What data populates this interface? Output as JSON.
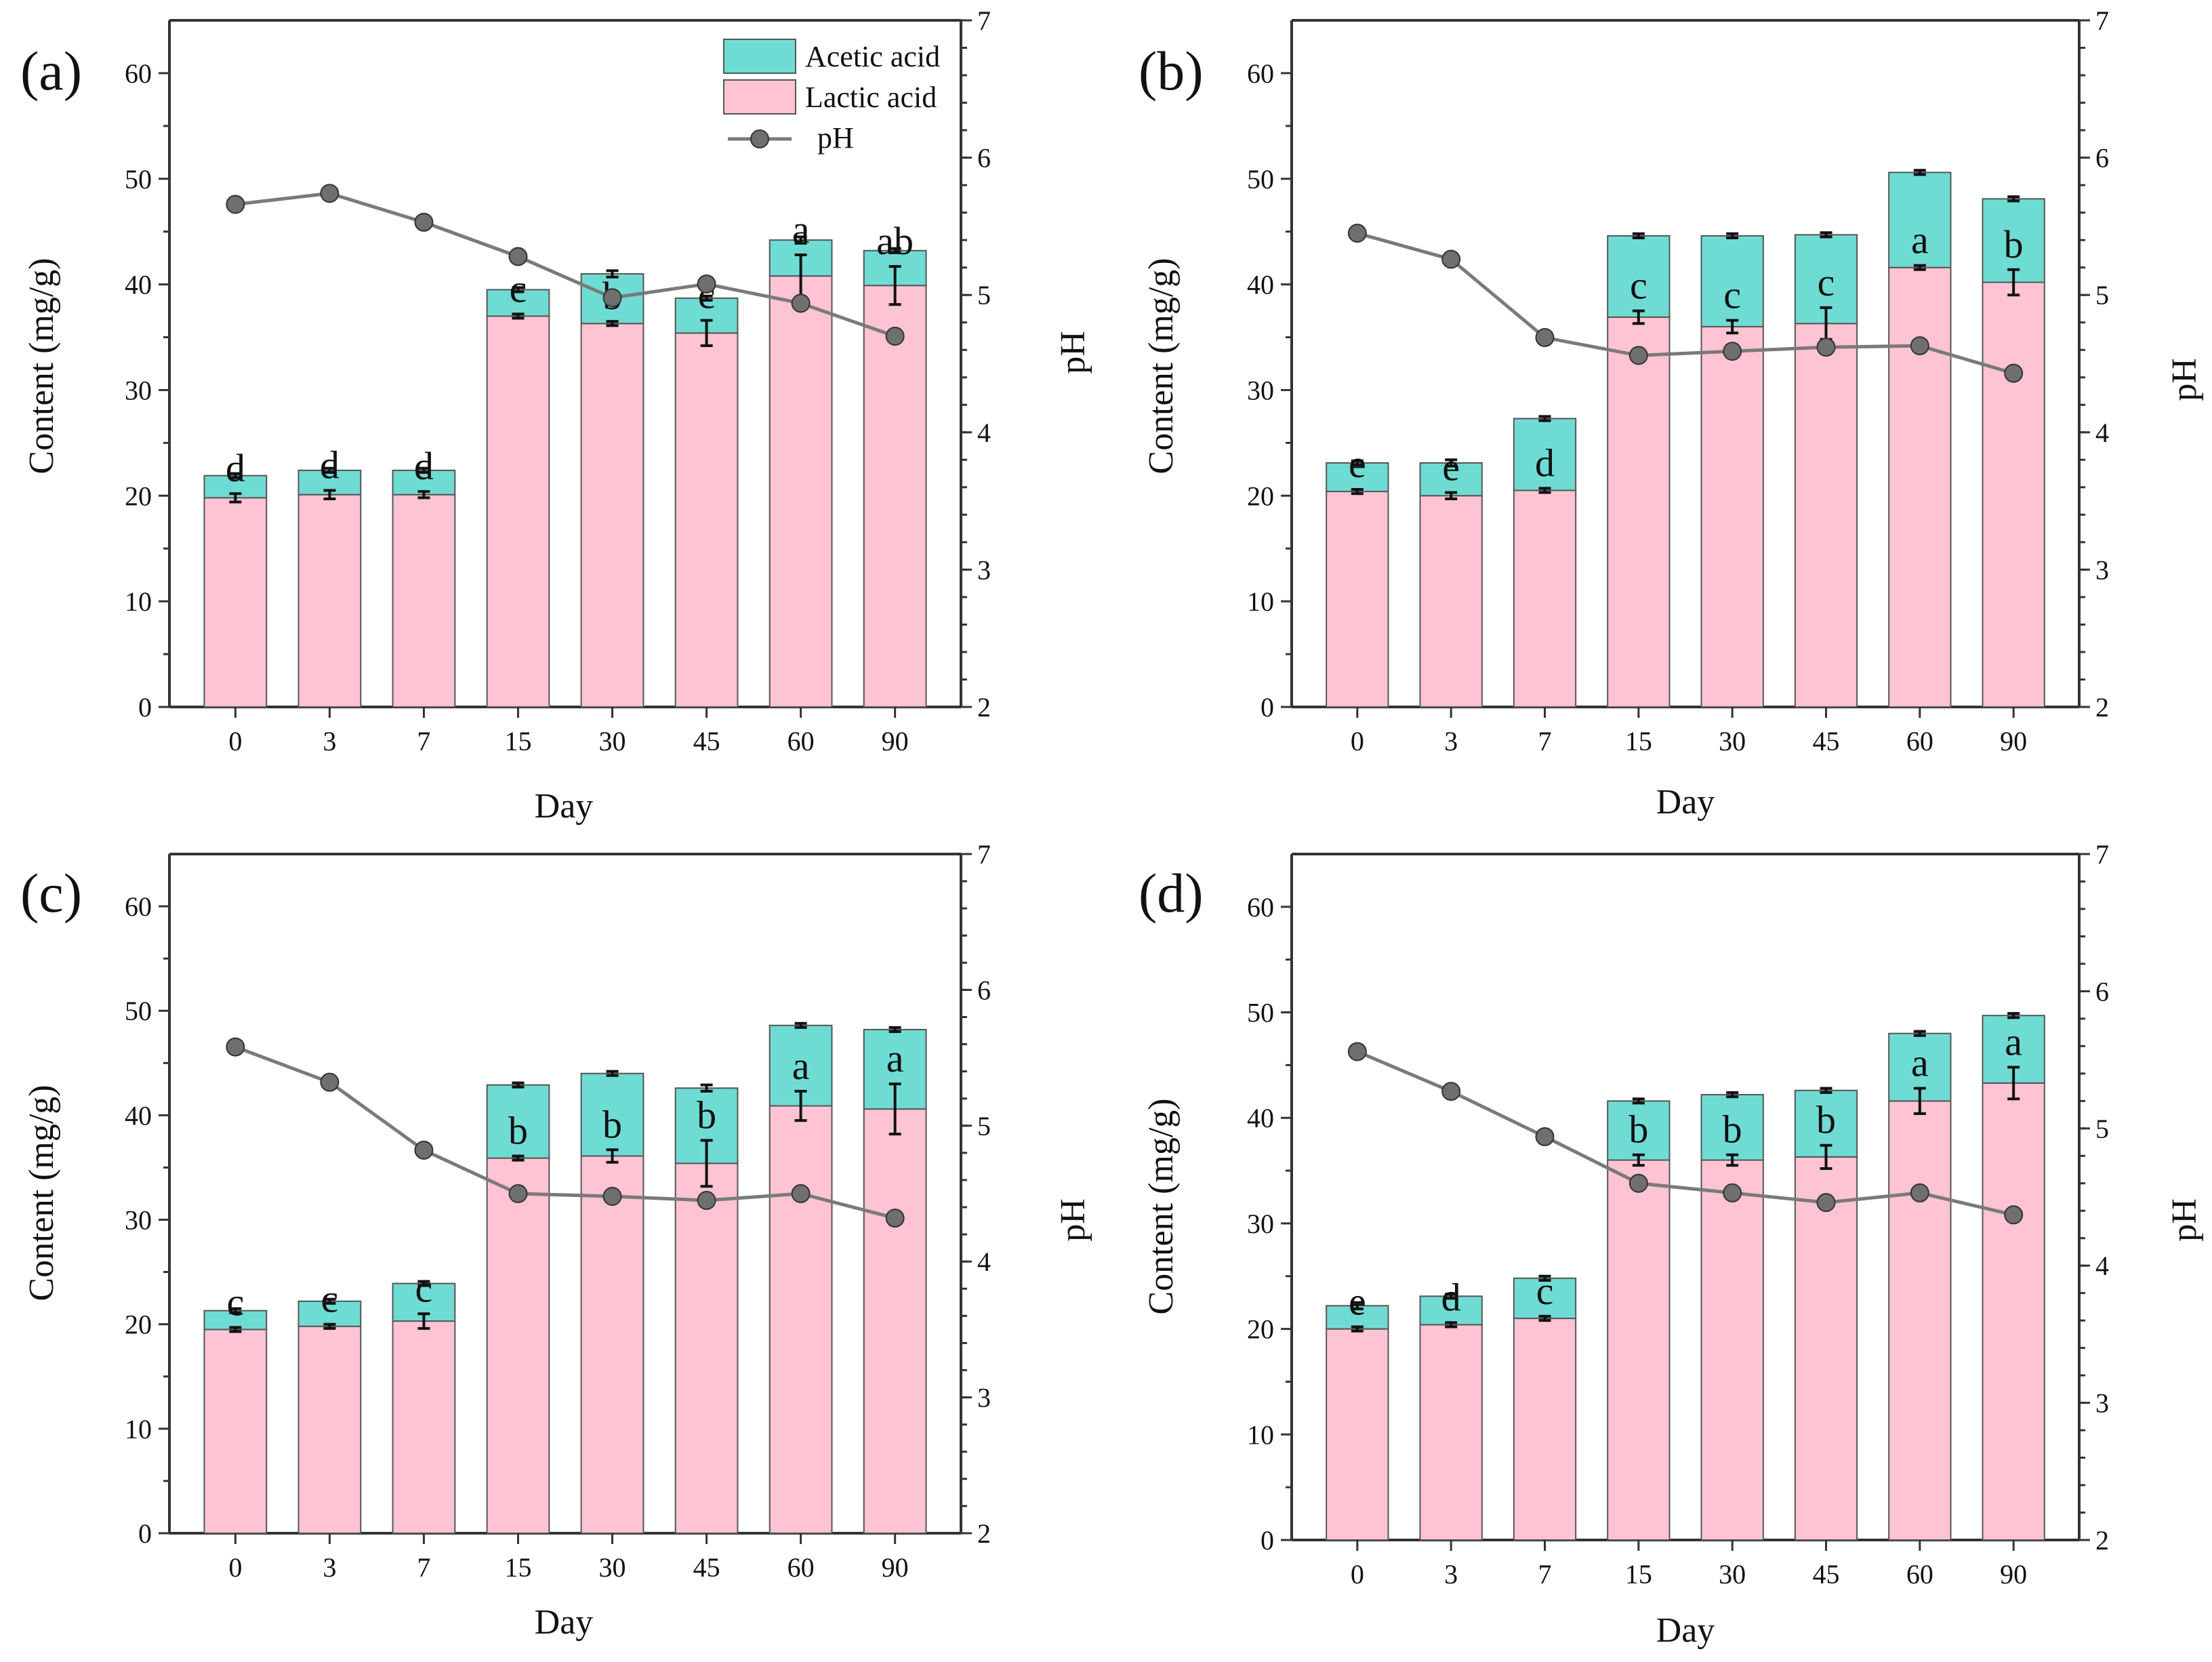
{
  "colors": {
    "lactic": "#ffc4d4",
    "acetic": "#6fdcd4",
    "ph_line": "#7a7a7a",
    "ph_point": "#6f6f6f"
  },
  "legend": {
    "acetic": "Acetic acid",
    "lactic": "Lactic acid",
    "ph": "pH"
  },
  "chart_data": [
    {
      "type": "bar",
      "panel": "(a)",
      "stacked": true,
      "categories": [
        "0",
        "3",
        "7",
        "15",
        "30",
        "45",
        "60",
        "90"
      ],
      "xlabel": "Day",
      "ylabel": "Content (mg/g)",
      "ylabel_right": "pH",
      "ylim": [
        0,
        65
      ],
      "yticks": [
        0,
        10,
        20,
        30,
        40,
        50,
        60
      ],
      "ylim_right": [
        2,
        7
      ],
      "yticks_right": [
        2,
        3,
        4,
        5,
        6,
        7
      ],
      "series": [
        {
          "name": "Lactic acid",
          "values": [
            19.8,
            20.1,
            20.1,
            37.0,
            36.3,
            35.4,
            40.8,
            39.9
          ],
          "errors": [
            0.4,
            0.4,
            0.3,
            0.2,
            0.2,
            1.2,
            2.0,
            1.8
          ]
        },
        {
          "name": "Acetic acid",
          "values": [
            2.1,
            2.3,
            2.3,
            2.5,
            4.7,
            3.3,
            3.4,
            3.3
          ],
          "errors": [
            0.2,
            0.2,
            0.2,
            0.2,
            0.3,
            0.2,
            0.3,
            0.2
          ]
        }
      ],
      "ph": [
        5.66,
        5.74,
        5.53,
        5.28,
        4.98,
        5.08,
        4.94,
        4.7
      ],
      "letters": [
        "d",
        "d",
        "d",
        "c",
        "b",
        "c",
        "a",
        "ab"
      ]
    },
    {
      "type": "bar",
      "panel": "(b)",
      "stacked": true,
      "categories": [
        "0",
        "3",
        "7",
        "15",
        "30",
        "45",
        "60",
        "90"
      ],
      "xlabel": "Day",
      "ylabel": "Content (mg/g)",
      "ylabel_right": "pH",
      "ylim": [
        0,
        65
      ],
      "yticks": [
        0,
        10,
        20,
        30,
        40,
        50,
        60
      ],
      "ylim_right": [
        2,
        7
      ],
      "yticks_right": [
        2,
        3,
        4,
        5,
        6,
        7
      ],
      "series": [
        {
          "name": "Lactic acid",
          "values": [
            20.4,
            20.0,
            20.5,
            36.9,
            36.0,
            36.3,
            41.6,
            40.2
          ],
          "errors": [
            0.2,
            0.3,
            0.2,
            0.6,
            0.6,
            1.5,
            0.2,
            1.2
          ]
        },
        {
          "name": "Acetic acid",
          "values": [
            2.7,
            3.1,
            6.8,
            7.7,
            8.6,
            8.4,
            9.0,
            7.9
          ],
          "errors": [
            0.2,
            0.3,
            0.2,
            0.2,
            0.2,
            0.2,
            0.2,
            0.2
          ]
        }
      ],
      "ph": [
        5.45,
        5.26,
        4.69,
        4.56,
        4.59,
        4.62,
        4.63,
        4.43
      ],
      "letters": [
        "e",
        "e",
        "d",
        "c",
        "c",
        "c",
        "a",
        "b"
      ]
    },
    {
      "type": "bar",
      "panel": "(c)",
      "stacked": true,
      "categories": [
        "0",
        "3",
        "7",
        "15",
        "30",
        "45",
        "60",
        "90"
      ],
      "xlabel": "Day",
      "ylabel": "Content (mg/g)",
      "ylabel_right": "pH",
      "ylim": [
        0,
        65
      ],
      "yticks": [
        0,
        10,
        20,
        30,
        40,
        50,
        60
      ],
      "ylim_right": [
        2,
        7
      ],
      "yticks_right": [
        2,
        3,
        4,
        5,
        6,
        7
      ],
      "series": [
        {
          "name": "Lactic acid",
          "values": [
            19.5,
            19.8,
            20.3,
            35.9,
            36.1,
            35.4,
            40.9,
            40.6
          ],
          "errors": [
            0.2,
            0.2,
            0.7,
            0.2,
            0.6,
            2.2,
            1.4,
            2.4
          ]
        },
        {
          "name": "Acetic acid",
          "values": [
            1.8,
            2.4,
            3.6,
            7.0,
            7.9,
            7.2,
            7.7,
            7.6
          ],
          "errors": [
            0.2,
            0.2,
            0.2,
            0.2,
            0.2,
            0.3,
            0.2,
            0.2
          ]
        }
      ],
      "ph": [
        5.58,
        5.32,
        4.82,
        4.5,
        4.48,
        4.45,
        4.5,
        4.32
      ],
      "letters": [
        "c",
        "c",
        "c",
        "b",
        "b",
        "b",
        "a",
        "a"
      ]
    },
    {
      "type": "bar",
      "panel": "(d)",
      "stacked": true,
      "categories": [
        "0",
        "3",
        "7",
        "15",
        "30",
        "45",
        "60",
        "90"
      ],
      "xlabel": "Day",
      "ylabel": "Content (mg/g)",
      "ylabel_right": "pH",
      "ylim": [
        0,
        65
      ],
      "yticks": [
        0,
        10,
        20,
        30,
        40,
        50,
        60
      ],
      "ylim_right": [
        2,
        7
      ],
      "yticks_right": [
        2,
        3,
        4,
        5,
        6,
        7
      ],
      "series": [
        {
          "name": "Lactic acid",
          "values": [
            20.0,
            20.4,
            21.0,
            36.0,
            36.0,
            36.3,
            41.6,
            43.3
          ],
          "errors": [
            0.2,
            0.2,
            0.2,
            0.5,
            0.5,
            1.1,
            1.2,
            1.5
          ]
        },
        {
          "name": "Acetic acid",
          "values": [
            2.2,
            2.7,
            3.8,
            5.6,
            6.2,
            6.3,
            6.4,
            6.4
          ],
          "errors": [
            0.3,
            0.2,
            0.2,
            0.2,
            0.2,
            0.2,
            0.2,
            0.2
          ]
        }
      ],
      "ph": [
        5.56,
        5.27,
        4.94,
        4.6,
        4.53,
        4.46,
        4.53,
        4.37
      ],
      "letters": [
        "e",
        "d",
        "c",
        "b",
        "b",
        "b",
        "a",
        "a"
      ]
    }
  ]
}
